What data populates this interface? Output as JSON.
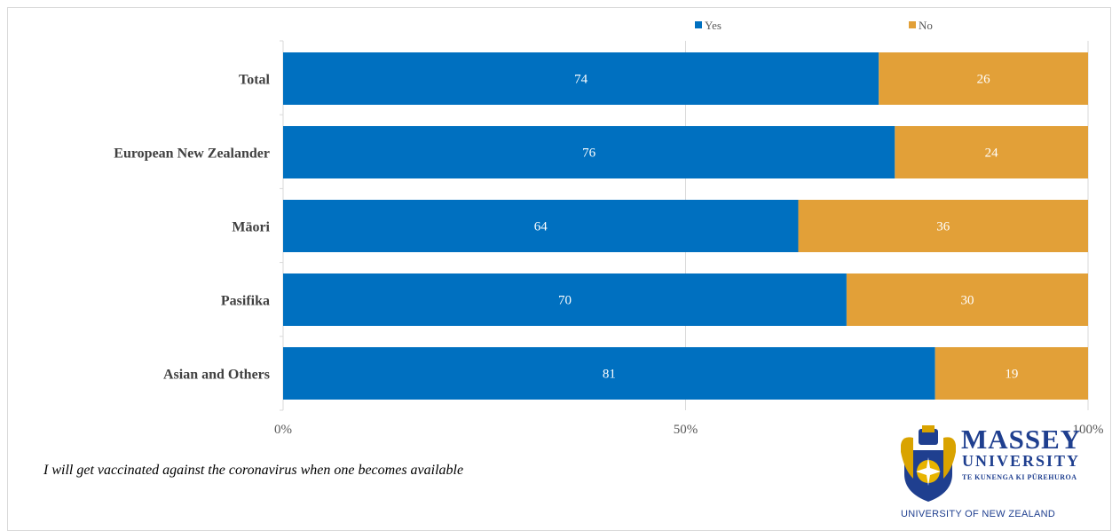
{
  "chart_data": {
    "type": "bar",
    "orientation": "horizontal",
    "stacked": "percent",
    "categories": [
      "Total",
      "European New Zealander",
      "Māori",
      "Pasifika",
      "Asian and Others"
    ],
    "series": [
      {
        "name": "Yes",
        "values": [
          74,
          76,
          64,
          70,
          81
        ],
        "color": "#0070c0"
      },
      {
        "name": "No",
        "values": [
          26,
          24,
          36,
          30,
          19
        ],
        "color": "#e2a038"
      }
    ],
    "x_ticks": [
      "0%",
      "50%",
      "100%"
    ],
    "xlim": [
      0,
      100
    ],
    "grid": true,
    "legend_position": "top-right",
    "title": "",
    "xlabel": "",
    "ylabel": ""
  },
  "footnote": "I will get vaccinated against the coronavirus when one becomes available",
  "logo": {
    "name": "MASSEY",
    "subtitle": "UNIVERSITY",
    "maori_name": "TE KUNENGA KI PŪREHUROA",
    "country": "UNIVERSITY OF NEW ZEALAND",
    "brand_color": "#1f3f8f",
    "crest_icon": "crest-icon"
  }
}
